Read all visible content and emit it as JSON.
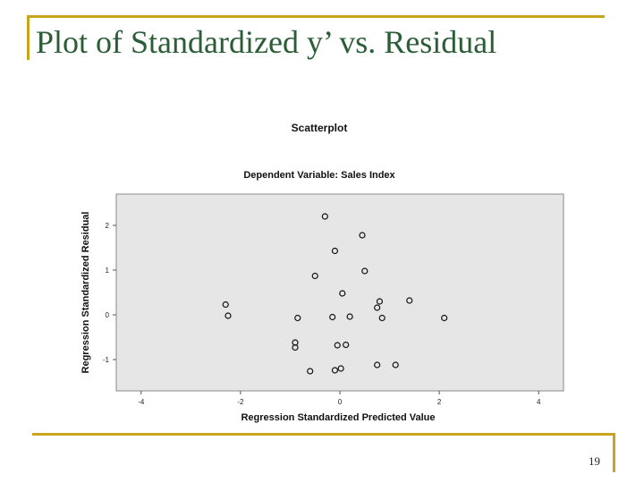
{
  "slide": {
    "title": "Plot of Standardized y’ vs. Residual",
    "page_number": "19"
  },
  "colors": {
    "accent_rule": "#c8a51c",
    "title_text": "#2b5d36",
    "plot_background": "#e6e6e6"
  },
  "chart_data": {
    "type": "scatter",
    "title": "Scatterplot",
    "subtitle": "Dependent Variable: Sales Index",
    "xlabel": "Regression Standardized Predicted Value",
    "ylabel": "Regression Standardized Residual",
    "xlim": [
      -4.5,
      4.5
    ],
    "ylim": [
      -1.7,
      2.7
    ],
    "xticks": [
      -4,
      -2,
      0,
      2,
      4
    ],
    "yticks": [
      -1,
      0,
      1,
      2
    ],
    "grid": false,
    "points": [
      {
        "x": -0.3,
        "y": 2.2
      },
      {
        "x": 0.45,
        "y": 1.78
      },
      {
        "x": -0.1,
        "y": 1.43
      },
      {
        "x": 0.5,
        "y": 0.98
      },
      {
        "x": -0.5,
        "y": 0.87
      },
      {
        "x": 0.05,
        "y": 0.48
      },
      {
        "x": 1.4,
        "y": 0.32
      },
      {
        "x": 0.8,
        "y": 0.3
      },
      {
        "x": -2.3,
        "y": 0.23
      },
      {
        "x": 0.75,
        "y": 0.16
      },
      {
        "x": -2.25,
        "y": -0.02
      },
      {
        "x": -0.85,
        "y": -0.07
      },
      {
        "x": -0.15,
        "y": -0.05
      },
      {
        "x": 0.2,
        "y": -0.04
      },
      {
        "x": 0.85,
        "y": -0.07
      },
      {
        "x": 2.1,
        "y": -0.07
      },
      {
        "x": -0.9,
        "y": -0.62
      },
      {
        "x": -0.9,
        "y": -0.73
      },
      {
        "x": -0.05,
        "y": -0.68
      },
      {
        "x": 0.12,
        "y": -0.67
      },
      {
        "x": 0.75,
        "y": -1.12
      },
      {
        "x": 1.12,
        "y": -1.12
      },
      {
        "x": -0.6,
        "y": -1.26
      },
      {
        "x": -0.1,
        "y": -1.24
      },
      {
        "x": 0.02,
        "y": -1.2
      }
    ]
  }
}
